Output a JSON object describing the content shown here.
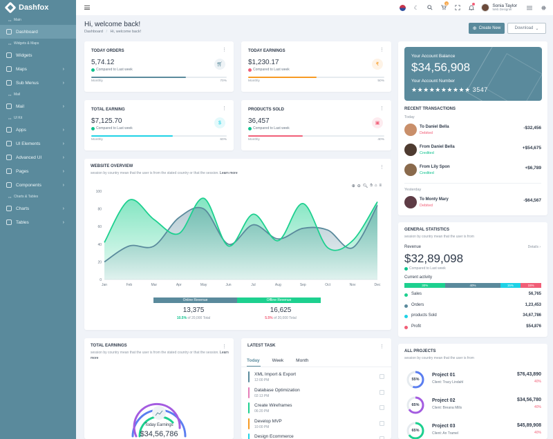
{
  "app": {
    "name": "Dashfox"
  },
  "sidebar": {
    "items": [
      {
        "type": "section",
        "label": "Main"
      },
      {
        "type": "item",
        "label": "Dashboard",
        "icon": "grid-icon",
        "active": true,
        "chevron": false
      },
      {
        "type": "section",
        "label": "Widgets & Maps"
      },
      {
        "type": "item",
        "label": "Widgets",
        "icon": "widgets-icon",
        "chevron": false
      },
      {
        "type": "item",
        "label": "Maps",
        "icon": "map-pin-icon",
        "chevron": true
      },
      {
        "type": "item",
        "label": "Sub Menus",
        "icon": "layers-icon",
        "chevron": true
      },
      {
        "type": "section",
        "label": "Mail"
      },
      {
        "type": "item",
        "label": "Mail",
        "icon": "mail-icon",
        "chevron": true
      },
      {
        "type": "section",
        "label": "UI Kit"
      },
      {
        "type": "item",
        "label": "Apps",
        "icon": "apps-icon",
        "chevron": true
      },
      {
        "type": "item",
        "label": "UI Elements",
        "icon": "elements-icon",
        "chevron": true
      },
      {
        "type": "item",
        "label": "Advanced UI",
        "icon": "advanced-icon",
        "chevron": true
      },
      {
        "type": "item",
        "label": "Pages",
        "icon": "pages-icon",
        "chevron": true
      },
      {
        "type": "item",
        "label": "Components",
        "icon": "components-icon",
        "chevron": true
      },
      {
        "type": "section",
        "label": "Charts & Tables"
      },
      {
        "type": "item",
        "label": "Charts",
        "icon": "chart-icon",
        "chevron": true
      },
      {
        "type": "item",
        "label": "Tables",
        "icon": "table-icon",
        "chevron": true
      }
    ]
  },
  "topbar": {
    "cart_badge": "4",
    "user": {
      "name": "Sonia Taylor",
      "role": "Web Designer"
    }
  },
  "header": {
    "title": "Hi, welcome back!",
    "breadcrumb": [
      "Dashboard",
      "Hi, welcome back!"
    ],
    "create_label": "Create New",
    "download_label": "Download"
  },
  "stats": [
    {
      "title": "TODAY ORDERS",
      "value": "5,74.12",
      "compare": "Compared to Last week",
      "footer_left": "Monthly",
      "footer_right": "70%",
      "percent": 70,
      "color": "#5a8a9c",
      "dot": "#0ec28d",
      "icon_bg": "#eef3f6",
      "icon_color": "#5a8a9c",
      "icon": "cart-icon"
    },
    {
      "title": "TODAY EARNINGS",
      "value": "$1,230.17",
      "compare": "Compared to Last week",
      "footer_left": "Monthly",
      "footer_right": "50%",
      "percent": 50,
      "color": "#f79a22",
      "dot": "#f15e77",
      "icon_bg": "#fef3e6",
      "icon_color": "#f79a22",
      "icon": "rupee-icon"
    },
    {
      "title": "TOTAL EARNING",
      "value": "$7,125.70",
      "compare": "Compared to Last week",
      "footer_left": "Monthly",
      "footer_right": "60%",
      "percent": 60,
      "color": "#1ed2e6",
      "dot": "#0ec28d",
      "icon_bg": "#e4f9fb",
      "icon_color": "#1ed2e6",
      "icon": "dollar-icon"
    },
    {
      "title": "PRODUCTS SOLD",
      "value": "36,457",
      "compare": "Compared to Last week",
      "footer_left": "Monthly",
      "footer_right": "40%",
      "percent": 40,
      "color": "#f15e77",
      "dot": "#0ec28d",
      "icon_bg": "#fdebef",
      "icon_color": "#f15e77",
      "icon": "bag-icon"
    }
  ],
  "balance": {
    "label": "Your Account Balance",
    "value": "$34,56,908",
    "number_label": "Your Account Number",
    "number": "★★★★★★★★★★ 3547"
  },
  "transactions": {
    "title": "RECENT TRANSACTIONS",
    "today_label": "Today",
    "yesterday_label": "Yesterday",
    "today": [
      {
        "name": "To Daniel Bella",
        "status": "Debited",
        "amount": "-$32,456",
        "status_color": "#f15e77",
        "avatar_color": "#c98f6a"
      },
      {
        "name": "From Daniel Bella",
        "status": "Credited",
        "amount": "+$54,675",
        "status_color": "#0ec28d",
        "avatar_color": "#4e3b30"
      },
      {
        "name": "From Lily Spon",
        "status": "Credited",
        "amount": "+$6,789",
        "status_color": "#0ec28d",
        "avatar_color": "#8a6a4c"
      }
    ],
    "yesterday": [
      {
        "name": "To Monty Mary",
        "status": "Debited",
        "amount": "-$64,567",
        "status_color": "#f15e77",
        "avatar_color": "#5e3c45"
      }
    ]
  },
  "overview": {
    "title": "WEBSITE OVERVIEW",
    "subtitle": "session by country mean that the user is from the stated country or that the session.",
    "learn_more": "Learn more",
    "legend": [
      "Online Revenue",
      "Offline Revenue"
    ],
    "online": {
      "value": "13,375",
      "pct": "10.5%",
      "of": "of 20,000 Total"
    },
    "offline": {
      "value": "16,625",
      "pct": "5.5%",
      "of": "of 20,000 Total"
    }
  },
  "chart_data": {
    "type": "area",
    "categories": [
      "Jan",
      "Feb",
      "Mar",
      "Apr",
      "May",
      "Jun",
      "Jul",
      "Aug",
      "Sep",
      "Oct",
      "Nov",
      "Dec"
    ],
    "ylim": [
      0,
      100
    ],
    "yticks": [
      0,
      20,
      40,
      60,
      80,
      100
    ],
    "grid": false,
    "series": [
      {
        "name": "Online Revenue",
        "color": "#5a8a9c",
        "values": [
          20,
          38,
          38,
          70,
          80,
          40,
          62,
          46,
          58,
          56,
          36,
          84
        ]
      },
      {
        "name": "Offline Revenue",
        "color": "#1dd08f",
        "values": [
          42,
          90,
          68,
          52,
          92,
          38,
          74,
          44,
          86,
          36,
          44,
          88
        ]
      }
    ]
  },
  "general": {
    "title": "GENERAL STATISTICS",
    "subtitle": "session by country mean that the user is from",
    "revenue_label": "Revenue",
    "details": "Details ›",
    "revenue": "$32,89,098",
    "compare": "Compared to Last week",
    "activity_label": "Current activity",
    "segments": [
      {
        "label": "30%",
        "pct": 30,
        "color": "#1dd08f"
      },
      {
        "label": "40%",
        "pct": 40,
        "color": "#5a8a9c"
      },
      {
        "label": "15%",
        "pct": 15,
        "color": "#1ed2e6"
      },
      {
        "label": "15%",
        "pct": 15,
        "color": "#f15e77"
      }
    ],
    "rows": [
      {
        "name": "Sales",
        "value": "56,765",
        "color": "#1dd08f"
      },
      {
        "name": "Orders",
        "value": "1,23,453",
        "color": "#5a8a9c"
      },
      {
        "name": "products Sold",
        "value": "34,67,786",
        "color": "#1ed2e6"
      },
      {
        "name": "Profit",
        "value": "$54,876",
        "color": "#f15e77"
      }
    ]
  },
  "earnings": {
    "title": "TOTAL EARNINGS",
    "subtitle": "session by country mean that the user is from the stated country or that the session.",
    "learn_more": "Learn more",
    "label": "Today Earnings",
    "value": "$34,56,786"
  },
  "tasks": {
    "title": "LATEST TASK",
    "tabs": [
      "Today",
      "Week",
      "Month"
    ],
    "items": [
      {
        "name": "XML Import & Export",
        "time": "12:00 PM",
        "color": "#5a8a9c"
      },
      {
        "name": "Database Optimization",
        "time": "02:13 PM",
        "color": "#e57db8"
      },
      {
        "name": "Create Wireframes",
        "time": "06:20 PM",
        "color": "#1dd08f"
      },
      {
        "name": "Develop MVP",
        "time": "10:00 PM",
        "color": "#f79a22"
      },
      {
        "name": "Design Ecommerce",
        "time": "",
        "color": "#1ed2e6"
      }
    ]
  },
  "projects": {
    "title": "ALL PROJECTS",
    "subtitle": "session by country mean that the user is from",
    "items": [
      {
        "name": "Project 01",
        "client": "Client: Tracy Lindahl",
        "amount": "$76,43,890",
        "pct": "40%",
        "progress": "55%",
        "value": 55,
        "color": "#5b7ef0"
      },
      {
        "name": "Project 02",
        "client": "Client: Breana Mills",
        "amount": "$34,56,780",
        "pct": "40%",
        "progress": "65%",
        "value": 65,
        "color": "#a45ce0"
      },
      {
        "name": "Project 03",
        "client": "Client: An Tramel",
        "amount": "$45,89,908",
        "pct": "40%",
        "progress": "65%",
        "value": 65,
        "color": "#1dd08f"
      }
    ]
  }
}
